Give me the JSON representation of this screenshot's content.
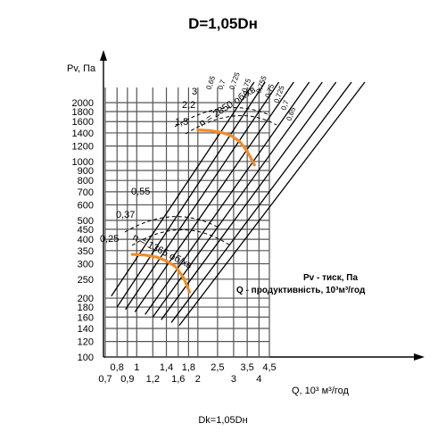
{
  "chart_data": {
    "type": "line",
    "title": "D=1,05Dн",
    "footer": "Dk=1,05Dн",
    "ylabel": "Pv, Па",
    "xlabel": "Q, 10³ м³/год",
    "y_scale": "log",
    "x_scale": "log",
    "ylim": [
      100,
      2000
    ],
    "xlim": [
      0.7,
      4.5
    ],
    "y_ticks": [
      100,
      120,
      140,
      160,
      180,
      200,
      250,
      300,
      350,
      400,
      450,
      500,
      600,
      700,
      800,
      900,
      1000,
      1200,
      1400,
      1600,
      1800,
      2000
    ],
    "y_tick_labels": [
      "100",
      "120",
      "140",
      "160",
      "180",
      "200",
      "250",
      "300",
      "350",
      "400",
      "450",
      "500",
      "600",
      "700",
      "800",
      "900",
      "1000",
      "1200",
      "1400",
      "1600",
      "1800",
      "2000"
    ],
    "x_ticks_upper": [
      0.8,
      1,
      1.4,
      1.8,
      2.5,
      3.5,
      4.5
    ],
    "x_tick_labels_upper": [
      "0,8",
      "1",
      "1,4",
      "1,8",
      "2,5",
      "3,5",
      "4,5"
    ],
    "x_ticks_lower": [
      0.7,
      0.9,
      1.2,
      1.6,
      2,
      3,
      4
    ],
    "x_tick_labels_lower": [
      "0,7",
      "0,9",
      "1,2",
      "1,6",
      "2",
      "3",
      "4"
    ],
    "power_labels": [
      "0,25",
      "0,37",
      "0,55",
      "1,5",
      "2,2",
      "3"
    ],
    "efficiency_labels": [
      "0,65",
      "0,7",
      "0,725",
      "0,75",
      "0,755",
      "0,75",
      "0,725",
      "0,7",
      "0,65"
    ],
    "speed_labels": [
      "n = 2850 об/хв",
      "n = 1365 об/хв"
    ],
    "legend": [
      "Pv - тиск, Па",
      "Q - продуктивність, 10³м³/год"
    ],
    "series": [
      {
        "name": "n = 2850 об/хв",
        "x": [
          2.0,
          2.3,
          2.6,
          2.9,
          3.2,
          3.5,
          3.8
        ],
        "y": [
          1450,
          1440,
          1410,
          1360,
          1270,
          1130,
          960
        ]
      },
      {
        "name": "n = 1365 об/хв",
        "x": [
          0.95,
          1.1,
          1.25,
          1.4,
          1.55,
          1.7,
          1.82
        ],
        "y": [
          335,
          332,
          325,
          310,
          290,
          255,
          215
        ]
      }
    ],
    "colors": {
      "curve": "#f28c28",
      "grid": "#555555",
      "lines": "#000000"
    }
  }
}
